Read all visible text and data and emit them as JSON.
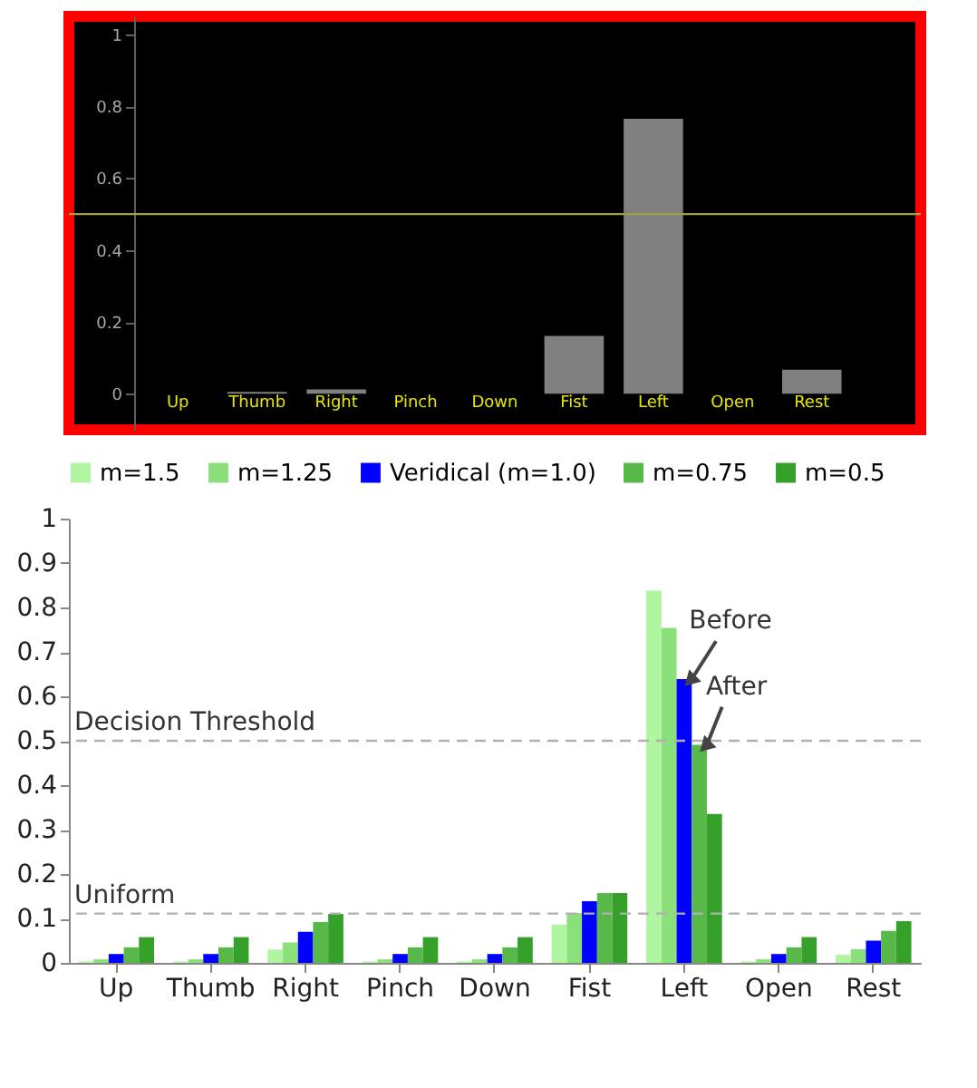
{
  "chart_data": [
    {
      "type": "bar",
      "categories": [
        "Up",
        "Thumb",
        "Right",
        "Pinch",
        "Down",
        "Fist",
        "Left",
        "Open",
        "Rest"
      ],
      "values": [
        0,
        0.005,
        0.012,
        0,
        0,
        0.161,
        0.765,
        0,
        0.067
      ],
      "color": "#808080",
      "ylim": [
        -0.1,
        1.05
      ],
      "yticks": [
        0,
        0.2,
        0.4,
        0.6,
        0.8,
        1
      ],
      "ref_lines": [
        {
          "axis": "y",
          "value": 0.5,
          "color": "#a0a040"
        }
      ]
    },
    {
      "type": "bar",
      "categories": [
        "Up",
        "Thumb",
        "Right",
        "Pinch",
        "Down",
        "Fist",
        "Left",
        "Open",
        "Rest"
      ],
      "series": [
        {
          "name": "m=1.5",
          "color": "#b0f5a0",
          "values": [
            0.003,
            0.003,
            0.03,
            0.003,
            0.003,
            0.086,
            0.838,
            0.003,
            0.018
          ]
        },
        {
          "name": "m=1.25",
          "color": "#8ce07c",
          "values": [
            0.008,
            0.008,
            0.046,
            0.008,
            0.008,
            0.112,
            0.754,
            0.008,
            0.031
          ]
        },
        {
          "name": "Veridical (m=1.0)",
          "color": "#0000ff",
          "values": [
            0.02,
            0.02,
            0.07,
            0.02,
            0.02,
            0.139,
            0.639,
            0.02,
            0.05
          ]
        },
        {
          "name": "m=0.75",
          "color": "#58b84a",
          "values": [
            0.035,
            0.035,
            0.092,
            0.035,
            0.035,
            0.157,
            0.491,
            0.035,
            0.072
          ]
        },
        {
          "name": "m=0.5",
          "color": "#35a02a",
          "values": [
            0.058,
            0.058,
            0.11,
            0.058,
            0.058,
            0.157,
            0.335,
            0.058,
            0.094
          ]
        }
      ],
      "ylim": [
        0,
        1
      ],
      "yticks": [
        0,
        0.1,
        0.2,
        0.3,
        0.4,
        0.5,
        0.6,
        0.7,
        0.8,
        0.9,
        1
      ],
      "legend": "top",
      "ref_lines": [
        {
          "axis": "y",
          "value": 0.5,
          "label": "Decision Threshold",
          "color": "#b0b0b0",
          "line_style": "dashed"
        },
        {
          "axis": "y",
          "value": 0.111,
          "label": "Uniform",
          "color": "#b0b0b0",
          "line_style": "dashed"
        }
      ],
      "annotations": [
        {
          "text": "Before",
          "x": "Left",
          "y": 0.639
        },
        {
          "text": "After",
          "x": "Left",
          "y": 0.491
        }
      ]
    }
  ]
}
